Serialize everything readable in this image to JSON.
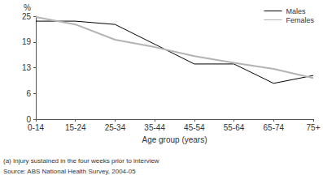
{
  "chart_data": {
    "type": "line",
    "y_label": "%",
    "x_label": "Age group (years)",
    "notes": [
      "(a) Injury sustained in the four weeks prior to interview",
      "Source: ABS National Health Survey, 2004-05"
    ],
    "categories": [
      "0-14",
      "15-24",
      "25-34",
      "35-44",
      "45-54",
      "55-64",
      "65-74",
      "75+"
    ],
    "series": [
      {
        "name": "Males",
        "color": "#000000",
        "values": [
          23.8,
          23.8,
          23.0,
          18.2,
          13.4,
          13.4,
          8.7,
          10.6
        ]
      },
      {
        "name": "Females",
        "color": "#b3b3b3",
        "values": [
          24.8,
          23.0,
          19.3,
          17.5,
          15.3,
          13.7,
          12.2,
          10.0
        ]
      }
    ],
    "ylim": [
      0,
      25
    ],
    "yticks": [
      0,
      {
        "value": 6.25,
        "label": "6"
      },
      {
        "value": 12.5,
        "label": "13"
      },
      {
        "value": 18.75,
        "label": "19"
      },
      25
    ],
    "grid": false,
    "legend": "top-right"
  }
}
